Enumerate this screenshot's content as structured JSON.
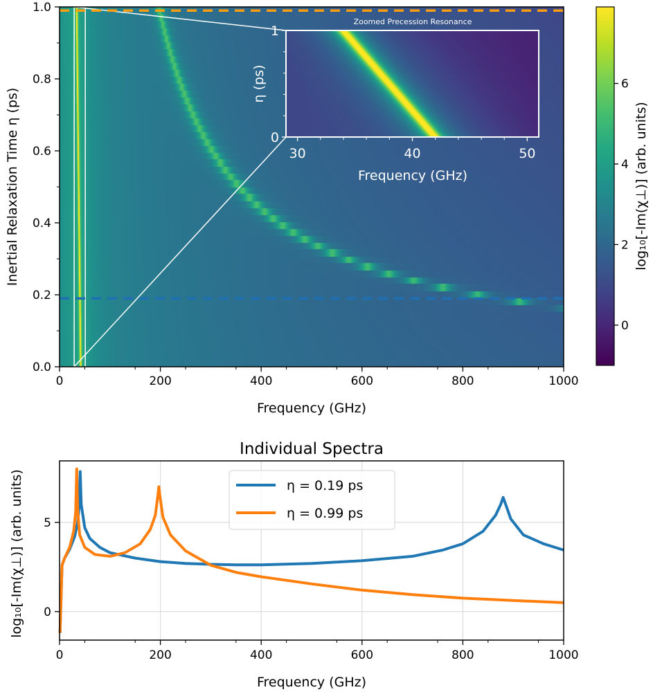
{
  "chart_data": [
    {
      "type": "heatmap",
      "title": "",
      "xlabel": "Frequency (GHz)",
      "ylabel": "Inertial Relaxation Time η (ps)",
      "xlim": [
        0,
        1000
      ],
      "ylim": [
        0.0,
        1.0
      ],
      "xticks": [
        "0",
        "200",
        "400",
        "600",
        "800",
        "1000"
      ],
      "yticks": [
        "0.0",
        "0.2",
        "0.4",
        "0.6",
        "0.8",
        "1.0"
      ],
      "colormap": "viridis",
      "colorbar": {
        "label": "log₁₀[-Im(χ⊥)] (arb. units)",
        "range": [
          -1.0,
          7.9
        ],
        "ticks": [
          "0",
          "2",
          "4",
          "6"
        ]
      },
      "features": {
        "precession_resonance_ghz_at_eta0": 42,
        "precession_resonance_ghz_at_eta1": 34,
        "nutation_resonance_points": [
          {
            "eta": 0.99,
            "freq": 197
          },
          {
            "eta": 0.8,
            "freq": 237
          },
          {
            "eta": 0.6,
            "freq": 304
          },
          {
            "eta": 0.5,
            "freq": 357
          },
          {
            "eta": 0.4,
            "freq": 437
          },
          {
            "eta": 0.3,
            "freq": 570
          },
          {
            "eta": 0.25,
            "freq": 677
          },
          {
            "eta": 0.19,
            "freq": 880
          },
          {
            "eta": 0.16,
            "freq": 1000
          }
        ]
      },
      "hlines": [
        {
          "eta": 0.99,
          "color": "#ff9f10",
          "style": "dashed"
        },
        {
          "eta": 0.19,
          "color": "#1f6fb4",
          "style": "dashed"
        }
      ],
      "zoom_box": {
        "xrange": [
          29,
          51
        ],
        "yrange": [
          0,
          1
        ]
      },
      "inset": {
        "title": "Zoomed Precession Resonance",
        "xlabel": "Frequency (GHz)",
        "ylabel": "η (ps)",
        "xlim": [
          29,
          51
        ],
        "ylim": [
          0,
          1
        ],
        "xticks": [
          "30",
          "40",
          "50"
        ],
        "yticks": [
          "0",
          "1"
        ]
      }
    },
    {
      "type": "line",
      "title": "Individual Spectra",
      "xlabel": "Frequency (GHz)",
      "ylabel": "log₁₀[-Im(χ⊥)] (arb. units)",
      "xlim": [
        0,
        1000
      ],
      "ylim": [
        -1.6,
        8.45
      ],
      "xticks": [
        "0",
        "200",
        "400",
        "600",
        "800",
        "1000"
      ],
      "yticks": [
        "0",
        "5"
      ],
      "grid": true,
      "legend_position": "top-center",
      "series": [
        {
          "name": "η = 0.19 ps",
          "color": "#1f77b4",
          "x": [
            1,
            5,
            10,
            20,
            30,
            36,
            39,
            41,
            43,
            50,
            60,
            80,
            100,
            150,
            200,
            250,
            300,
            350,
            400,
            500,
            600,
            700,
            760,
            800,
            840,
            865,
            875,
            880,
            885,
            895,
            920,
            960,
            1000
          ],
          "y": [
            -1.2,
            2.6,
            3.0,
            3.5,
            4.2,
            5.0,
            6.0,
            7.85,
            6.0,
            4.7,
            4.1,
            3.6,
            3.3,
            3.0,
            2.8,
            2.7,
            2.65,
            2.62,
            2.62,
            2.7,
            2.85,
            3.1,
            3.45,
            3.8,
            4.5,
            5.4,
            6.0,
            6.4,
            6.0,
            5.2,
            4.3,
            3.8,
            3.45
          ]
        },
        {
          "name": "η = 0.99 ps",
          "color": "#ff7f0e",
          "x": [
            1,
            5,
            10,
            20,
            28,
            32,
            34,
            36,
            40,
            50,
            70,
            100,
            130,
            160,
            180,
            190,
            195,
            197,
            199,
            205,
            220,
            250,
            300,
            350,
            400,
            500,
            600,
            700,
            800,
            900,
            1000
          ],
          "y": [
            -1.2,
            2.6,
            3.0,
            3.6,
            4.5,
            5.6,
            8.0,
            5.6,
            4.3,
            3.6,
            3.2,
            3.1,
            3.3,
            3.8,
            4.6,
            5.4,
            6.5,
            7.0,
            6.5,
            5.3,
            4.3,
            3.4,
            2.6,
            2.2,
            1.95,
            1.55,
            1.2,
            0.95,
            0.75,
            0.62,
            0.5
          ]
        }
      ]
    }
  ]
}
